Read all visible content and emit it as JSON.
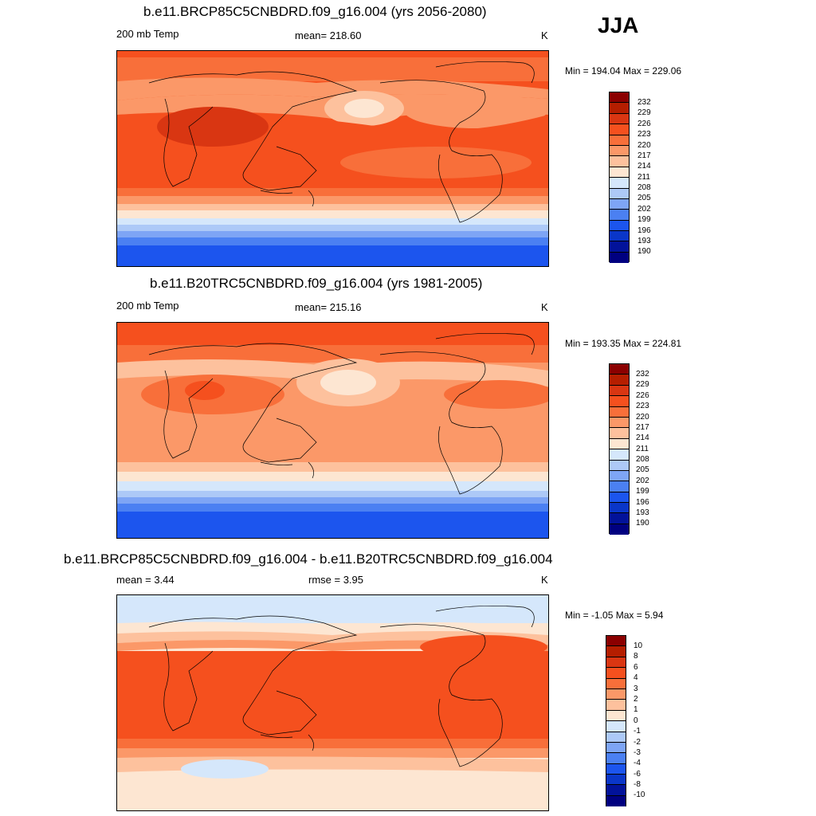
{
  "season": "JJA",
  "panels": [
    {
      "title": "b.e11.BRCP85C5CNBDRD.f09_g16.004 (yrs 2056-2080)",
      "left_label": "200 mb Temp",
      "center_label": "mean= 218.60",
      "unit": "K",
      "minmax": "Min = 194.04 Max = 229.06",
      "colorbar_labels": [
        "232",
        "229",
        "226",
        "223",
        "220",
        "217",
        "214",
        "211",
        "208",
        "205",
        "202",
        "199",
        "196",
        "193",
        "190"
      ]
    },
    {
      "title": "b.e11.B20TRC5CNBDRD.f09_g16.004 (yrs 1981-2005)",
      "left_label": "200 mb Temp",
      "center_label": "mean= 215.16",
      "unit": "K",
      "minmax": "Min = 193.35 Max = 224.81",
      "colorbar_labels": [
        "232",
        "229",
        "226",
        "223",
        "220",
        "217",
        "214",
        "211",
        "208",
        "205",
        "202",
        "199",
        "196",
        "193",
        "190"
      ]
    },
    {
      "title": "b.e11.BRCP85C5CNBDRD.f09_g16.004 - b.e11.B20TRC5CNBDRD.f09_g16.004",
      "left_label": "mean =   3.44",
      "center_label": "rmse =   3.95",
      "unit": "K",
      "minmax": "Min =  -1.05 Max =   5.94",
      "colorbar_labels": [
        "10",
        "8",
        "6",
        "4",
        "3",
        "2",
        "1",
        "0",
        "-1",
        "-2",
        "-3",
        "-4",
        "-6",
        "-8",
        "-10"
      ]
    }
  ],
  "palette": [
    "#8b0000",
    "#b51e00",
    "#d93612",
    "#f5501e",
    "#f86f3a",
    "#fb9868",
    "#fdc19d",
    "#fde6d2",
    "#d5e7fb",
    "#adc9f7",
    "#7ea5f5",
    "#4b80f2",
    "#1c55ee",
    "#0a36c9",
    "#02129a",
    "#000080"
  ]
}
